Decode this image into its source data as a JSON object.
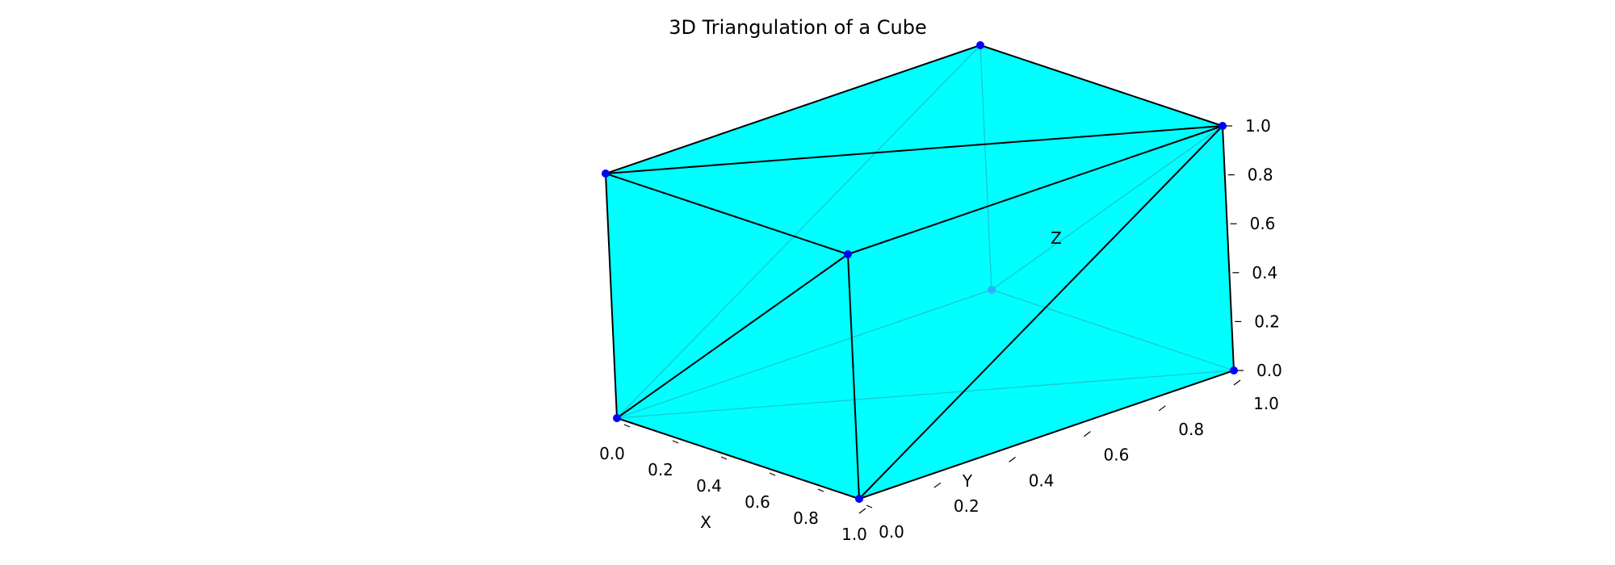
{
  "chart_data": {
    "type": "3d-triangulation",
    "title": "3D Triangulation of a Cube",
    "xlabel": "X",
    "ylabel": "Y",
    "zlabel": "Z",
    "xlim": [
      0,
      1
    ],
    "ylim": [
      0,
      1
    ],
    "zlim": [
      0,
      1
    ],
    "x_ticks": [
      "0.0",
      "0.2",
      "0.4",
      "0.6",
      "0.8",
      "1.0"
    ],
    "y_ticks": [
      "0.0",
      "0.2",
      "0.4",
      "0.6",
      "0.8",
      "1.0"
    ],
    "z_ticks": [
      "0.0",
      "0.2",
      "0.4",
      "0.6",
      "0.8",
      "1.0"
    ],
    "grid": false,
    "colors": {
      "face": "#00ffff",
      "edge": "#000000",
      "point": "#0000ff"
    },
    "vertices": [
      {
        "x": 0,
        "y": 0,
        "z": 0
      },
      {
        "x": 1,
        "y": 0,
        "z": 0
      },
      {
        "x": 0,
        "y": 1,
        "z": 0
      },
      {
        "x": 1,
        "y": 1,
        "z": 0
      },
      {
        "x": 0,
        "y": 0,
        "z": 1
      },
      {
        "x": 1,
        "y": 0,
        "z": 1
      },
      {
        "x": 0,
        "y": 1,
        "z": 1
      },
      {
        "x": 1,
        "y": 1,
        "z": 1
      }
    ],
    "visible_edges": [
      [
        0,
        1
      ],
      [
        0,
        4
      ],
      [
        1,
        5
      ],
      [
        1,
        3
      ],
      [
        3,
        7
      ],
      [
        4,
        5
      ],
      [
        4,
        6
      ],
      [
        6,
        7
      ],
      [
        5,
        7
      ],
      [
        0,
        5
      ],
      [
        1,
        7
      ],
      [
        4,
        7
      ]
    ],
    "hidden_edges": [
      [
        2,
        6
      ],
      [
        2,
        0
      ],
      [
        2,
        3
      ],
      [
        0,
        6
      ],
      [
        2,
        7
      ],
      [
        0,
        3
      ]
    ]
  }
}
